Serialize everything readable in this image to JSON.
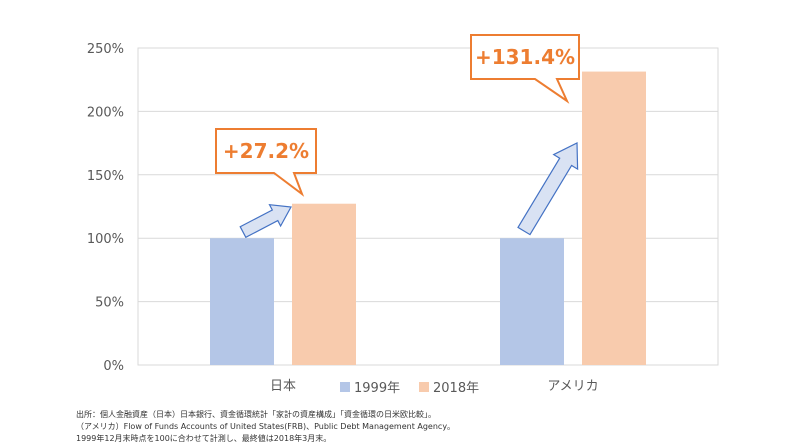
{
  "chart_data": {
    "type": "bar",
    "categories": [
      "日本",
      "アメリカ"
    ],
    "series": [
      {
        "name": "1999年",
        "values": [
          100,
          100
        ]
      },
      {
        "name": "2018年",
        "values": [
          127.2,
          231.4
        ]
      }
    ],
    "y_ticks": [
      "0%",
      "50%",
      "100%",
      "150%",
      "200%",
      "250%"
    ],
    "ylim": [
      0,
      250
    ],
    "grid": true,
    "legend_position": "bottom",
    "annotations": [
      "+27.2%",
      "+131.4%"
    ],
    "colors": {
      "1999年": "#B4C6E7",
      "2018年": "#F8CBAD",
      "annotation": "#ED7D31",
      "arrow_fill": "#D9E2F3",
      "arrow_stroke": "#4472C4"
    }
  },
  "source_notes": [
    "出所：個人金融資産（日本）日本銀行、資金循環統計「家計の資産構成」「資金循環の日米欧比較」。",
    "（アメリカ）Flow of Funds Accounts of United States(FRB)、Public Debt Management Agency。",
    "1999年12月末時点を100に合わせて計測し、最終値は2018年3月末。"
  ]
}
